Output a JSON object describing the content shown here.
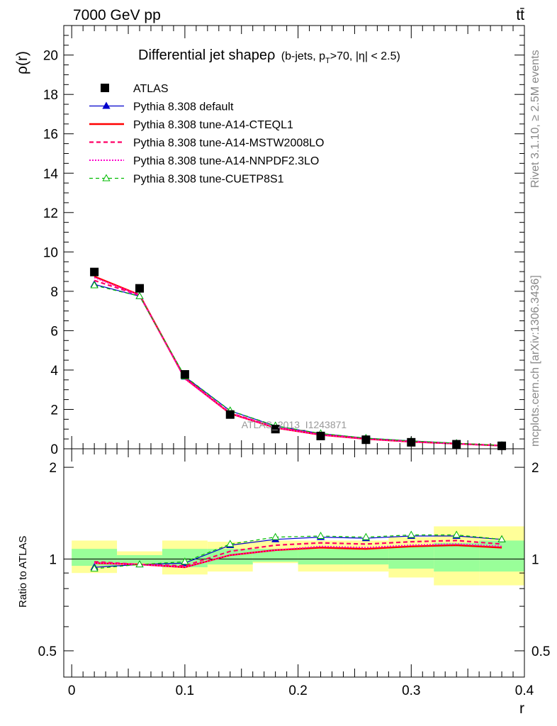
{
  "header": {
    "energy_label": "7000 GeV pp",
    "process_label": "tt̄",
    "rivet_label": "Rivet 3.1.10, ≥ 2.5M events",
    "mcplots_label": "mcplots.cern.ch [arXiv:1306.3436]",
    "watermark": "ATLAS_2013_I1243871"
  },
  "chart_data": [
    {
      "type": "scatter",
      "title_main": "Differential jet shapeρ",
      "title_sub": "(b-jets, p_T>70, |η| < 2.5)",
      "title_sub_parts": {
        "pre": "(b-jets, p",
        "sub": "T",
        "post": ">70, |η| < 2.5)"
      },
      "ylabel": "ρ(r)",
      "xlim": [
        -0.007,
        0.4
      ],
      "ylim": [
        0,
        21.5
      ],
      "yticks": [
        0,
        2,
        4,
        6,
        8,
        10,
        12,
        14,
        16,
        18,
        20
      ],
      "ytick_labels": [
        "0",
        "2",
        "4",
        "6",
        "8",
        "10",
        "12",
        "14",
        "16",
        "18",
        "20"
      ],
      "grid": false,
      "legend_position": "top-left",
      "x": [
        0.02,
        0.06,
        0.1,
        0.14,
        0.18,
        0.22,
        0.26,
        0.3,
        0.34,
        0.38
      ],
      "series": [
        {
          "name": "ATLAS",
          "color": "#000000",
          "style": "data",
          "values": [
            8.98,
            8.15,
            3.78,
            1.74,
            1.0,
            0.65,
            0.46,
            0.33,
            0.23,
            0.15
          ]
        },
        {
          "name": "Pythia 8.308 default",
          "color": "#0000cc",
          "style": "solid-thin",
          "marker": "triangle-filled",
          "values": [
            8.35,
            7.75,
            3.66,
            1.93,
            1.16,
            0.77,
            0.54,
            0.4,
            0.28,
            0.17
          ]
        },
        {
          "name": "Pythia 8.308 tune-A14-CTEQL1",
          "color": "#ff0000",
          "style": "solid-thick",
          "values": [
            8.75,
            7.82,
            3.58,
            1.79,
            1.07,
            0.71,
            0.5,
            0.36,
            0.26,
            0.16
          ]
        },
        {
          "name": "Pythia 8.308 tune-A14-MSTW2008LO",
          "color": "#ff0066",
          "style": "dashed",
          "values": [
            8.55,
            7.8,
            3.6,
            1.82,
            1.1,
            0.73,
            0.52,
            0.37,
            0.26,
            0.16
          ]
        },
        {
          "name": "Pythia 8.308 tune-A14-NNPDF2.3LO",
          "color": "#ff00cc",
          "style": "dotted",
          "values": [
            8.7,
            7.8,
            3.55,
            1.79,
            1.07,
            0.71,
            0.5,
            0.36,
            0.26,
            0.16
          ]
        },
        {
          "name": "Pythia 8.308 tune-CUETP8S1",
          "color": "#00bb00",
          "style": "dashed-thin",
          "marker": "triangle-open",
          "values": [
            8.3,
            7.75,
            3.68,
            1.94,
            1.17,
            0.78,
            0.54,
            0.4,
            0.28,
            0.17
          ]
        }
      ]
    },
    {
      "type": "scatter",
      "ylabel": "Ratio to ATLAS",
      "xlabel": "r",
      "xlim": [
        -0.007,
        0.4
      ],
      "ylim": [
        0.41,
        2.3
      ],
      "ytick_labels": [
        "0.5",
        "1",
        "2"
      ],
      "yticks": [
        0.5,
        1,
        2
      ],
      "xticks": [
        0,
        0.1,
        0.2,
        0.3,
        0.4
      ],
      "xtick_labels": [
        "0",
        "0.1",
        "0.2",
        "0.3",
        "0.4"
      ],
      "reference_line": 1,
      "uncertainty_bands": [
        {
          "x": [
            0.0,
            0.04
          ],
          "yellow": [
            0.9,
            1.15
          ],
          "green": [
            0.95,
            1.08
          ]
        },
        {
          "x": [
            0.04,
            0.08
          ],
          "yellow": [
            0.95,
            1.06
          ],
          "green": [
            0.97,
            1.03
          ]
        },
        {
          "x": [
            0.08,
            0.12
          ],
          "yellow": [
            0.89,
            1.15
          ],
          "green": [
            0.94,
            1.08
          ]
        },
        {
          "x": [
            0.12,
            0.16
          ],
          "yellow": [
            0.91,
            1.14
          ],
          "green": [
            0.96,
            1.08
          ]
        },
        {
          "x": [
            0.16,
            0.2
          ],
          "yellow": [
            0.97,
            1.15
          ],
          "green": [
            0.98,
            1.08
          ]
        },
        {
          "x": [
            0.2,
            0.24
          ],
          "yellow": [
            0.91,
            1.15
          ],
          "green": [
            0.96,
            1.08
          ]
        },
        {
          "x": [
            0.24,
            0.28
          ],
          "yellow": [
            0.91,
            1.15
          ],
          "green": [
            0.96,
            1.08
          ]
        },
        {
          "x": [
            0.28,
            0.32
          ],
          "yellow": [
            0.87,
            1.18
          ],
          "green": [
            0.93,
            1.1
          ]
        },
        {
          "x": [
            0.32,
            0.36
          ],
          "yellow": [
            0.82,
            1.28
          ],
          "green": [
            0.91,
            1.13
          ]
        },
        {
          "x": [
            0.36,
            0.4
          ],
          "yellow": [
            0.82,
            1.28
          ],
          "green": [
            0.91,
            1.15
          ]
        }
      ],
      "x": [
        0.02,
        0.06,
        0.1,
        0.14,
        0.18,
        0.22,
        0.26,
        0.3,
        0.34,
        0.38
      ],
      "series": [
        {
          "name": "Pythia 8.308 default",
          "color": "#0000cc",
          "style": "solid-thin",
          "marker": "triangle-filled",
          "values": [
            0.94,
            0.96,
            0.97,
            1.11,
            1.16,
            1.18,
            1.17,
            1.19,
            1.19,
            1.16
          ]
        },
        {
          "name": "Pythia 8.308 tune-A14-CTEQL1",
          "color": "#ff0000",
          "style": "solid-thick",
          "values": [
            0.97,
            0.96,
            0.94,
            1.03,
            1.07,
            1.09,
            1.08,
            1.1,
            1.11,
            1.09
          ]
        },
        {
          "name": "Pythia 8.308 tune-A14-MSTW2008LO",
          "color": "#ff0066",
          "style": "dashed",
          "values": [
            0.98,
            0.96,
            0.95,
            1.06,
            1.11,
            1.13,
            1.12,
            1.14,
            1.15,
            1.12
          ]
        },
        {
          "name": "Pythia 8.308 tune-A14-NNPDF2.3LO",
          "color": "#ff00cc",
          "style": "dotted",
          "values": [
            0.97,
            0.96,
            0.94,
            1.03,
            1.07,
            1.1,
            1.09,
            1.11,
            1.12,
            1.1
          ]
        },
        {
          "name": "Pythia 8.308 tune-CUETP8S1",
          "color": "#00bb00",
          "style": "dashed-thin",
          "marker": "triangle-open",
          "values": [
            0.93,
            0.96,
            0.98,
            1.12,
            1.18,
            1.19,
            1.18,
            1.2,
            1.2,
            1.16
          ]
        }
      ]
    }
  ]
}
